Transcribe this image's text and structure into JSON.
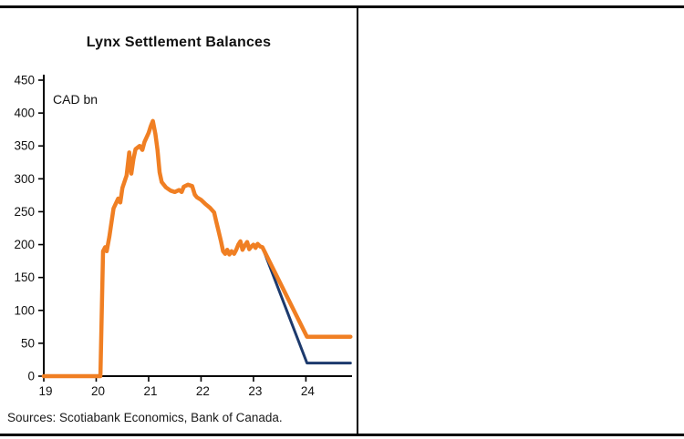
{
  "panel": {
    "title": "Lynx Settlement Balances",
    "source": "Sources: Scotiabank Economics, Bank of Canada."
  },
  "chart_data": {
    "type": "line",
    "title": "Lynx Settlement Balances",
    "ylabel": "CAD bn",
    "xlabel": "",
    "xlim": [
      19,
      24.88
    ],
    "ylim": [
      0,
      450
    ],
    "y_tick_step": 50,
    "x_ticks": [
      19,
      20,
      21,
      22,
      23,
      24
    ],
    "grid": false,
    "legend": "none",
    "axis_color": "#000000",
    "series": [
      {
        "name": "navy-projection-line",
        "color": "#1d3a6d",
        "width": 3,
        "points": [
          [
            23.17,
            196
          ],
          [
            24.02,
            20
          ],
          [
            24.85,
            20
          ]
        ]
      },
      {
        "name": "orange-balances-line",
        "color": "#f07f23",
        "width": 4.5,
        "points": [
          [
            19.0,
            0
          ],
          [
            19.25,
            0
          ],
          [
            19.5,
            0
          ],
          [
            19.75,
            0
          ],
          [
            20.0,
            0
          ],
          [
            20.08,
            0
          ],
          [
            20.13,
            190
          ],
          [
            20.17,
            196
          ],
          [
            20.2,
            190
          ],
          [
            20.25,
            212
          ],
          [
            20.33,
            255
          ],
          [
            20.42,
            270
          ],
          [
            20.46,
            264
          ],
          [
            20.5,
            286
          ],
          [
            20.58,
            305
          ],
          [
            20.63,
            340
          ],
          [
            20.67,
            308
          ],
          [
            20.71,
            330
          ],
          [
            20.75,
            345
          ],
          [
            20.83,
            350
          ],
          [
            20.88,
            344
          ],
          [
            20.92,
            356
          ],
          [
            21.0,
            370
          ],
          [
            21.04,
            380
          ],
          [
            21.08,
            388
          ],
          [
            21.13,
            368
          ],
          [
            21.17,
            344
          ],
          [
            21.21,
            310
          ],
          [
            21.25,
            295
          ],
          [
            21.33,
            287
          ],
          [
            21.42,
            282
          ],
          [
            21.5,
            280
          ],
          [
            21.58,
            283
          ],
          [
            21.63,
            280
          ],
          [
            21.67,
            288
          ],
          [
            21.75,
            291
          ],
          [
            21.83,
            289
          ],
          [
            21.88,
            276
          ],
          [
            21.92,
            272
          ],
          [
            22.0,
            268
          ],
          [
            22.08,
            262
          ],
          [
            22.17,
            256
          ],
          [
            22.25,
            249
          ],
          [
            22.29,
            235
          ],
          [
            22.33,
            222
          ],
          [
            22.38,
            205
          ],
          [
            22.42,
            190
          ],
          [
            22.46,
            186
          ],
          [
            22.5,
            192
          ],
          [
            22.54,
            185
          ],
          [
            22.58,
            190
          ],
          [
            22.63,
            186
          ],
          [
            22.67,
            192
          ],
          [
            22.71,
            200
          ],
          [
            22.75,
            205
          ],
          [
            22.79,
            192
          ],
          [
            22.83,
            198
          ],
          [
            22.88,
            204
          ],
          [
            22.92,
            193
          ],
          [
            22.96,
            197
          ],
          [
            23.0,
            200
          ],
          [
            23.04,
            195
          ],
          [
            23.08,
            201
          ],
          [
            23.13,
            197
          ],
          [
            23.17,
            196
          ],
          [
            24.02,
            60
          ],
          [
            24.3,
            60
          ],
          [
            24.6,
            60
          ],
          [
            24.85,
            60
          ]
        ]
      }
    ]
  }
}
